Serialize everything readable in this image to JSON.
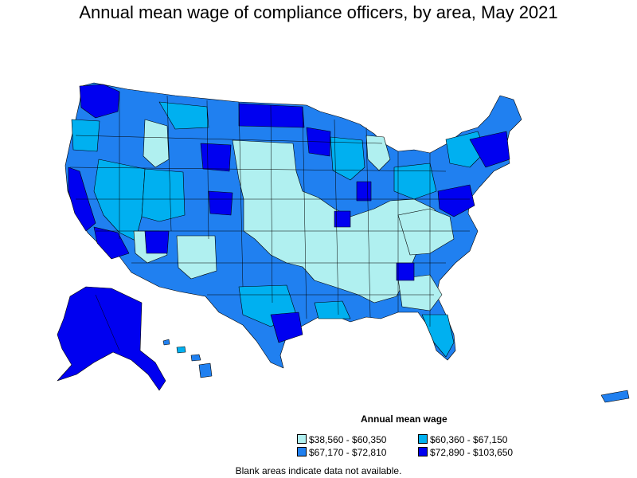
{
  "title": "Annual mean wage of compliance officers, by area, May 2021",
  "legend": {
    "title": "Annual mean wage",
    "items": [
      {
        "label": "$38,560 - $60,350",
        "color": "#b0f0f0"
      },
      {
        "label": "$60,360 - $67,150",
        "color": "#00b0f0"
      },
      {
        "label": "$67,170 - $72,810",
        "color": "#2080f0"
      },
      {
        "label": "$72,890 - $103,650",
        "color": "#0000f0"
      }
    ]
  },
  "footnote": "Blank areas indicate data not available.",
  "colors": {
    "bin1": "#b0f0f0",
    "bin2": "#00b0f0",
    "bin3": "#2080f0",
    "bin4": "#0000f0"
  }
}
